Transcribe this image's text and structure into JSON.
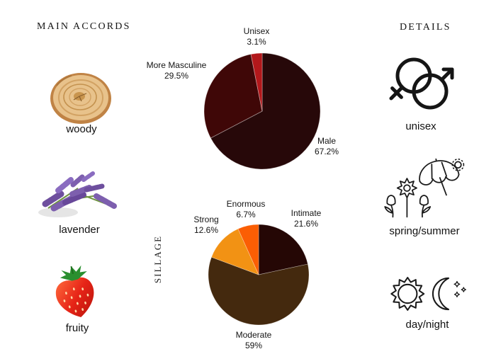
{
  "accords": {
    "title": "MAIN ACCORDS",
    "items": [
      {
        "label": "woody",
        "icon": "wood-slice-icon"
      },
      {
        "label": "lavender",
        "icon": "lavender-sprig-icon"
      },
      {
        "label": "fruity",
        "icon": "strawberry-icon"
      }
    ]
  },
  "details": {
    "title": "DETAILS",
    "items": [
      {
        "label": "unisex",
        "icon": "male-female-symbols-icon"
      },
      {
        "label": "spring/summer",
        "icon": "flowers-umbrella-sun-icon"
      },
      {
        "label": "day/night",
        "icon": "sun-moon-icon"
      }
    ]
  },
  "chart_data": [
    {
      "type": "pie",
      "name": "gender-audience",
      "start_angle_deg": 0,
      "direction": "clockwise",
      "legend": "none",
      "labels_position": "outside",
      "slices": [
        {
          "label": "Male",
          "value": 67.2,
          "display": "67.2%",
          "color": "#270809"
        },
        {
          "label": "More Masculine",
          "value": 29.5,
          "display": "29.5%",
          "color": "#3f0707"
        },
        {
          "label": "Unisex",
          "value": 3.1,
          "display": "3.1%",
          "color": "#b2181b"
        }
      ]
    },
    {
      "type": "pie",
      "name": "sillage",
      "axis_label": "SILLAGE",
      "start_angle_deg": 0,
      "direction": "clockwise",
      "legend": "none",
      "labels_position": "outside",
      "slices": [
        {
          "label": "Intimate",
          "value": 21.6,
          "display": "21.6%",
          "color": "#250705"
        },
        {
          "label": "Moderate",
          "value": 59,
          "display": "59%",
          "color": "#44290e"
        },
        {
          "label": "Strong",
          "value": 12.6,
          "display": "12.6%",
          "color": "#f29214"
        },
        {
          "label": "Enormous",
          "value": 6.7,
          "display": "6.7%",
          "color": "#fb5e04"
        }
      ]
    }
  ]
}
